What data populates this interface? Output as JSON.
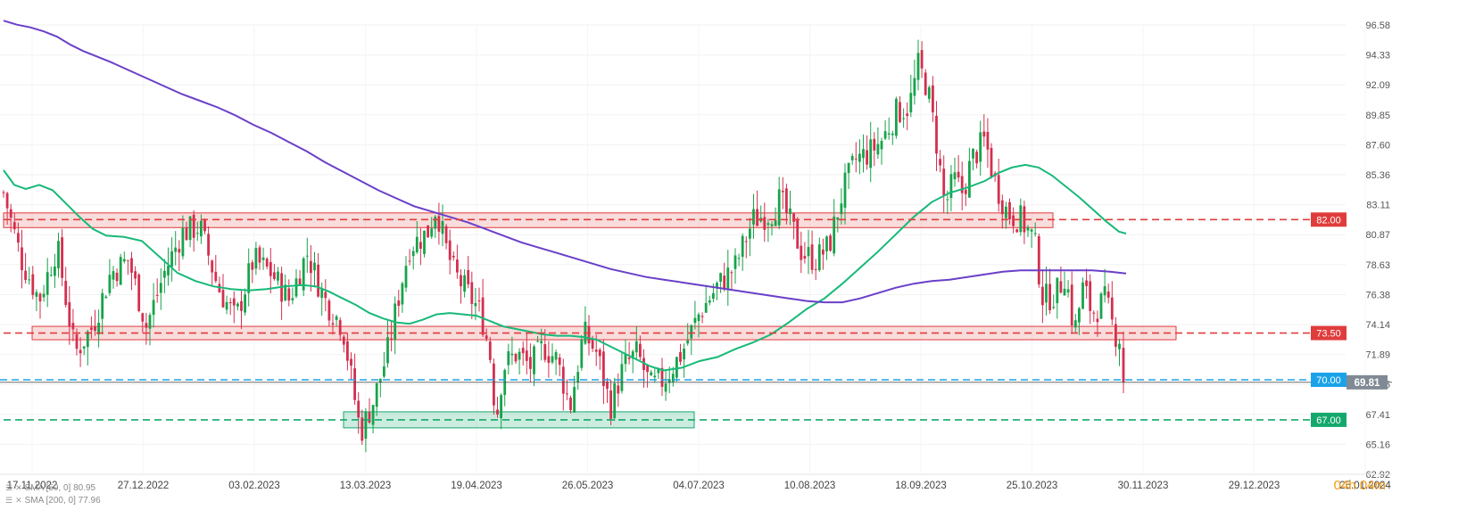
{
  "chart_data": {
    "type": "candlestick",
    "title": "",
    "x_ticks": [
      "17.11.2022",
      "27.12.2022",
      "03.02.2023",
      "13.03.2023",
      "19.04.2023",
      "26.05.2023",
      "04.07.2023",
      "10.08.2023",
      "18.09.2023",
      "25.10.2023",
      "30.11.2023",
      "29.12.2023",
      "25.01.2024"
    ],
    "y_ticks": [
      "96.58",
      "94.33",
      "92.09",
      "89.85",
      "87.60",
      "85.36",
      "83.11",
      "80.87",
      "78.63",
      "76.38",
      "74.14",
      "71.89",
      "69.65",
      "67.41",
      "65.16",
      "62.92"
    ],
    "ylim": [
      62.92,
      96.58
    ],
    "last_price": "69.81",
    "last_price_color": "#808a95",
    "levels": [
      {
        "label": "82.00",
        "value": 82.0,
        "color": "#e03c3c",
        "zone": [
          81.4,
          82.5
        ]
      },
      {
        "label": "73.50",
        "value": 73.5,
        "color": "#e03c3c",
        "zone": [
          73.0,
          74.0
        ]
      },
      {
        "label": "70.00",
        "value": 70.0,
        "color": "#1aa3e8"
      },
      {
        "label": "67.00",
        "value": 67.0,
        "color": "#15a86c",
        "zone": [
          66.4,
          67.6
        ]
      }
    ],
    "series": [
      {
        "name": "SMA [50, 0]",
        "value_label": "80.95",
        "color": "#17b978"
      },
      {
        "name": "SMA [200, 0]",
        "value_label": "77.96",
        "color": "#6a3fc9"
      }
    ],
    "sma_points": {
      "sma50": [
        [
          0,
          85.7
        ],
        [
          12,
          84.6
        ],
        [
          25,
          84.3
        ],
        [
          40,
          84.6
        ],
        [
          55,
          84.2
        ],
        [
          70,
          83.2
        ],
        [
          85,
          82.2
        ],
        [
          100,
          81.3
        ],
        [
          115,
          80.8
        ],
        [
          135,
          80.7
        ],
        [
          155,
          80.4
        ],
        [
          175,
          79.2
        ],
        [
          195,
          78.0
        ],
        [
          215,
          77.4
        ],
        [
          235,
          77.0
        ],
        [
          255,
          76.8
        ],
        [
          275,
          76.7
        ],
        [
          295,
          76.8
        ],
        [
          315,
          77.0
        ],
        [
          335,
          77.1
        ],
        [
          350,
          77.0
        ],
        [
          365,
          76.6
        ],
        [
          380,
          76.1
        ],
        [
          395,
          75.6
        ],
        [
          410,
          75.0
        ],
        [
          425,
          74.6
        ],
        [
          440,
          74.3
        ],
        [
          455,
          74.2
        ],
        [
          470,
          74.5
        ],
        [
          485,
          74.9
        ],
        [
          500,
          75.0
        ],
        [
          515,
          74.9
        ],
        [
          530,
          74.8
        ],
        [
          545,
          74.4
        ],
        [
          560,
          74.0
        ],
        [
          575,
          73.8
        ],
        [
          590,
          73.6
        ],
        [
          605,
          73.4
        ],
        [
          620,
          73.3
        ],
        [
          635,
          73.3
        ],
        [
          650,
          73.2
        ],
        [
          665,
          73.0
        ],
        [
          680,
          72.5
        ],
        [
          695,
          72.0
        ],
        [
          710,
          71.5
        ],
        [
          725,
          71.0
        ],
        [
          740,
          70.7
        ],
        [
          760,
          70.9
        ],
        [
          780,
          71.4
        ],
        [
          800,
          71.7
        ],
        [
          820,
          72.3
        ],
        [
          840,
          72.8
        ],
        [
          860,
          73.4
        ],
        [
          880,
          74.3
        ],
        [
          900,
          75.3
        ],
        [
          920,
          76.1
        ],
        [
          940,
          77.2
        ],
        [
          960,
          78.4
        ],
        [
          980,
          79.6
        ],
        [
          1000,
          80.9
        ],
        [
          1020,
          82.2
        ],
        [
          1040,
          83.3
        ],
        [
          1060,
          84.0
        ],
        [
          1080,
          84.4
        ],
        [
          1100,
          84.9
        ],
        [
          1115,
          85.5
        ],
        [
          1130,
          85.9
        ],
        [
          1145,
          86.1
        ],
        [
          1160,
          85.9
        ],
        [
          1175,
          85.3
        ],
        [
          1190,
          84.5
        ],
        [
          1205,
          83.7
        ],
        [
          1220,
          82.8
        ],
        [
          1235,
          81.9
        ],
        [
          1250,
          81.1
        ],
        [
          1258,
          80.95
        ]
      ],
      "sma200": [
        [
          0,
          96.9
        ],
        [
          15,
          96.6
        ],
        [
          30,
          96.4
        ],
        [
          45,
          96.1
        ],
        [
          60,
          95.7
        ],
        [
          75,
          95.1
        ],
        [
          90,
          94.6
        ],
        [
          105,
          94.2
        ],
        [
          120,
          93.8
        ],
        [
          140,
          93.2
        ],
        [
          160,
          92.6
        ],
        [
          180,
          92.0
        ],
        [
          200,
          91.4
        ],
        [
          220,
          90.9
        ],
        [
          240,
          90.4
        ],
        [
          260,
          89.8
        ],
        [
          280,
          89.1
        ],
        [
          300,
          88.5
        ],
        [
          320,
          87.8
        ],
        [
          340,
          87.1
        ],
        [
          360,
          86.3
        ],
        [
          380,
          85.6
        ],
        [
          400,
          84.9
        ],
        [
          420,
          84.2
        ],
        [
          440,
          83.6
        ],
        [
          460,
          83.0
        ],
        [
          480,
          82.6
        ],
        [
          500,
          82.2
        ],
        [
          520,
          81.8
        ],
        [
          540,
          81.3
        ],
        [
          560,
          80.8
        ],
        [
          580,
          80.3
        ],
        [
          600,
          79.9
        ],
        [
          620,
          79.5
        ],
        [
          640,
          79.1
        ],
        [
          660,
          78.7
        ],
        [
          680,
          78.3
        ],
        [
          700,
          78.0
        ],
        [
          720,
          77.7
        ],
        [
          740,
          77.5
        ],
        [
          760,
          77.3
        ],
        [
          780,
          77.1
        ],
        [
          800,
          76.9
        ],
        [
          820,
          76.7
        ],
        [
          840,
          76.5
        ],
        [
          860,
          76.3
        ],
        [
          880,
          76.1
        ],
        [
          900,
          75.9
        ],
        [
          920,
          75.8
        ],
        [
          940,
          75.8
        ],
        [
          960,
          76.1
        ],
        [
          980,
          76.5
        ],
        [
          1000,
          76.9
        ],
        [
          1020,
          77.2
        ],
        [
          1040,
          77.4
        ],
        [
          1060,
          77.5
        ],
        [
          1080,
          77.7
        ],
        [
          1100,
          77.9
        ],
        [
          1120,
          78.1
        ],
        [
          1140,
          78.2
        ],
        [
          1160,
          78.2
        ],
        [
          1180,
          78.2
        ],
        [
          1200,
          78.2
        ],
        [
          1220,
          78.2
        ],
        [
          1240,
          78.1
        ],
        [
          1258,
          77.96
        ]
      ]
    },
    "price_path": [
      [
        0,
        84.0
      ],
      [
        20,
        79.0
      ],
      [
        40,
        76.0
      ],
      [
        60,
        80.0
      ],
      [
        80,
        72.0
      ],
      [
        100,
        74.0
      ],
      [
        120,
        78.0
      ],
      [
        140,
        79.0
      ],
      [
        160,
        74.0
      ],
      [
        180,
        78.0
      ],
      [
        200,
        81.0
      ],
      [
        220,
        81.5
      ],
      [
        240,
        77.0
      ],
      [
        260,
        74.5
      ],
      [
        280,
        79.0
      ],
      [
        300,
        78.0
      ],
      [
        320,
        76.0
      ],
      [
        340,
        79.5
      ],
      [
        360,
        76.0
      ],
      [
        380,
        74.0
      ],
      [
        390,
        70.0
      ],
      [
        400,
        66.0
      ],
      [
        415,
        68.5
      ],
      [
        430,
        72.0
      ],
      [
        445,
        77.0
      ],
      [
        455,
        80.0
      ],
      [
        465,
        80.5
      ],
      [
        475,
        81.0
      ],
      [
        485,
        83.0
      ],
      [
        495,
        80.0
      ],
      [
        505,
        78.0
      ],
      [
        520,
        76.5
      ],
      [
        535,
        75.0
      ],
      [
        545,
        72.0
      ],
      [
        552,
        67.0
      ],
      [
        560,
        71.0
      ],
      [
        575,
        72.0
      ],
      [
        590,
        71.0
      ],
      [
        605,
        72.5
      ],
      [
        620,
        71.5
      ],
      [
        635,
        68.0
      ],
      [
        650,
        73.5
      ],
      [
        665,
        72.0
      ],
      [
        680,
        68.0
      ],
      [
        695,
        71.0
      ],
      [
        710,
        72.0
      ],
      [
        725,
        69.5
      ],
      [
        740,
        70.0
      ],
      [
        760,
        72.0
      ],
      [
        780,
        75.0
      ],
      [
        800,
        77.0
      ],
      [
        820,
        78.5
      ],
      [
        840,
        82.0
      ],
      [
        860,
        82.5
      ],
      [
        870,
        83.5
      ],
      [
        880,
        82.0
      ],
      [
        895,
        79.5
      ],
      [
        910,
        79.0
      ],
      [
        925,
        80.0
      ],
      [
        940,
        84.0
      ],
      [
        955,
        86.5
      ],
      [
        970,
        87.0
      ],
      [
        985,
        88.0
      ],
      [
        1000,
        90.0
      ],
      [
        1015,
        90.5
      ],
      [
        1025,
        93.5
      ],
      [
        1035,
        92.0
      ],
      [
        1045,
        88.0
      ],
      [
        1055,
        83.0
      ],
      [
        1065,
        85.0
      ],
      [
        1075,
        84.0
      ],
      [
        1085,
        86.5
      ],
      [
        1100,
        88.0
      ],
      [
        1110,
        85.0
      ],
      [
        1125,
        82.5
      ],
      [
        1140,
        82.0
      ],
      [
        1155,
        80.5
      ],
      [
        1165,
        76.0
      ],
      [
        1180,
        76.5
      ],
      [
        1190,
        78.0
      ],
      [
        1200,
        73.5
      ],
      [
        1210,
        77.0
      ],
      [
        1220,
        75.0
      ],
      [
        1235,
        76.0
      ],
      [
        1245,
        73.5
      ],
      [
        1255,
        73.0
      ],
      [
        1258,
        69.8
      ]
    ]
  },
  "legend": {
    "sma50": "SMA [50, 0] 80.95",
    "sma200": "SMA [200, 0] 77.96"
  },
  "timer": {
    "text": "04h 04m",
    "color": "#f39c12"
  }
}
